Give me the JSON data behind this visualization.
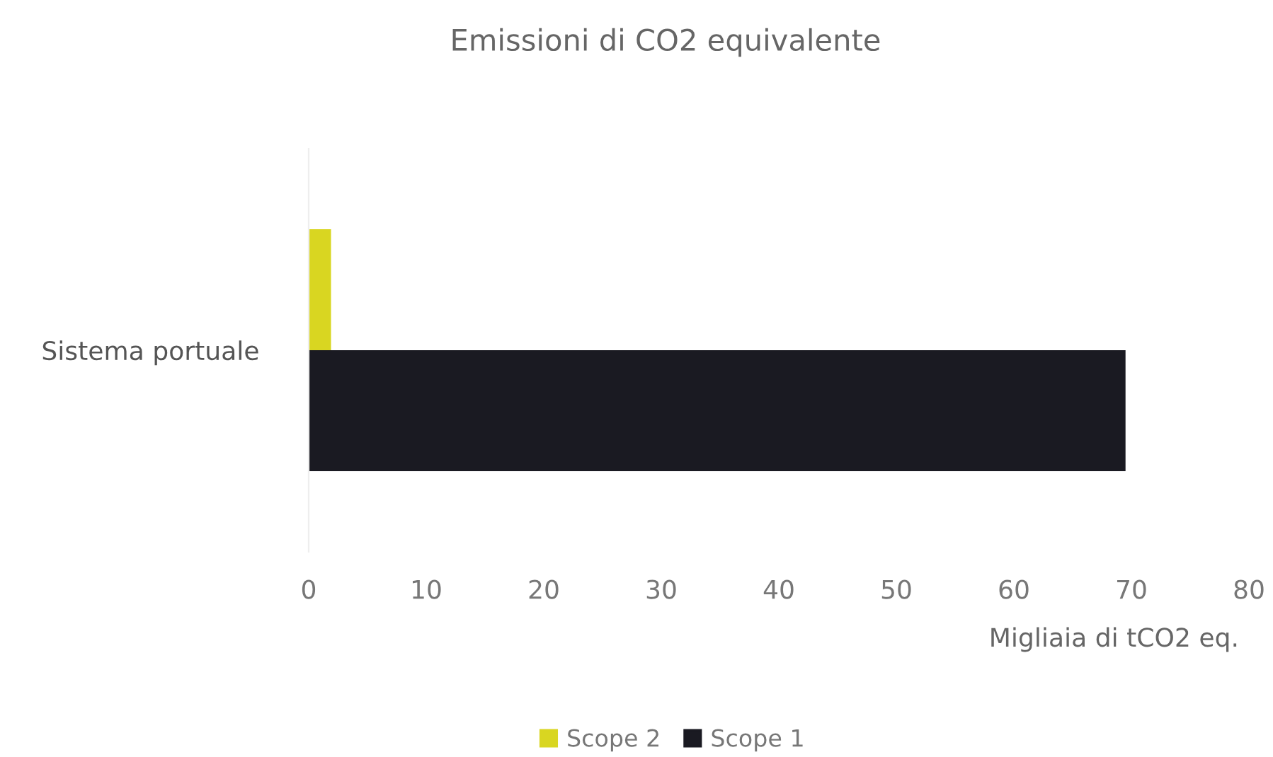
{
  "chart_data": {
    "type": "bar",
    "orientation": "horizontal",
    "title": "Emissioni di CO2 equivalente",
    "xlabel": "Migliaia di tCO2 eq.",
    "categories": [
      "Sistema portuale"
    ],
    "series": [
      {
        "name": "Scope 2",
        "color": "#d9d621",
        "values": [
          1.9
        ]
      },
      {
        "name": "Scope 1",
        "color": "#1a1a22",
        "values": [
          69.5
        ]
      }
    ],
    "xlim": [
      0,
      80
    ],
    "xticks": [
      0,
      10,
      20,
      30,
      40,
      50,
      60,
      70,
      80
    ],
    "grid": false,
    "legend": "bottom"
  }
}
